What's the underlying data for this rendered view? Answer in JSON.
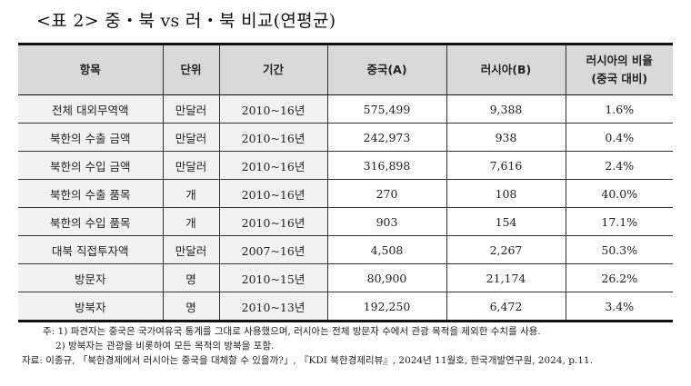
{
  "title": "<표 2> 중・북 vs 러・북 비교(연평균)",
  "table": {
    "headers": [
      "항목",
      "단위",
      "기간",
      "중국(A)",
      "러시아(B)",
      "러시아의 비율",
      "(중국 대비)"
    ],
    "rows": [
      {
        "item": "전체 대외무역액",
        "unit": "만달러",
        "period": "2010~16년",
        "china": "575,499",
        "russia": "9,388",
        "ratio": "1.6%"
      },
      {
        "item": "북한의 수출 금액",
        "unit": "만달러",
        "period": "2010~16년",
        "china": "242,973",
        "russia": "938",
        "ratio": "0.4%"
      },
      {
        "item": "북한의 수입 금액",
        "unit": "만달러",
        "period": "2010~16년",
        "china": "316,898",
        "russia": "7,616",
        "ratio": "2.4%"
      },
      {
        "item": "북한의 수출 품목",
        "unit": "개",
        "period": "2010~16년",
        "china": "270",
        "russia": "108",
        "ratio": "40.0%"
      },
      {
        "item": "북한의 수입 품목",
        "unit": "개",
        "period": "2010~16년",
        "china": "903",
        "russia": "154",
        "ratio": "17.1%"
      },
      {
        "item": "대북 직접투자액",
        "unit": "만달러",
        "period": "2007~16년",
        "china": "4,508",
        "russia": "2,267",
        "ratio": "50.3%"
      },
      {
        "item": "방문자",
        "unit": "명",
        "period": "2010~15년",
        "china": "80,900",
        "russia": "21,174",
        "ratio": "26.2%"
      },
      {
        "item": "방북자",
        "unit": "명",
        "period": "2010~13년",
        "china": "192,250",
        "russia": "6,472",
        "ratio": "3.4%"
      }
    ]
  },
  "notes": {
    "note1": "주: 1) 파견자는 중국은 국가여유국 통계를 그대로 사용했으며, 러시아는 전체 방문자 수에서 관광 목적을 제외한 수치를 사용.",
    "note2": "2) 방북자는 관광을 비롯하여 모든 목적의 방북을 포함.",
    "source": "자료: 이종규, 「북한경제에서 러시아는 중국을 대체할 수 있을까?」, 『KDI 북한경제리뷰』, 2024년 11월호, 한국개발연구원, 2024, p.11."
  },
  "colors": {
    "header_bg": "#d9d9d9",
    "label_col_bg": "#f2f2f2",
    "border": "#111111"
  }
}
